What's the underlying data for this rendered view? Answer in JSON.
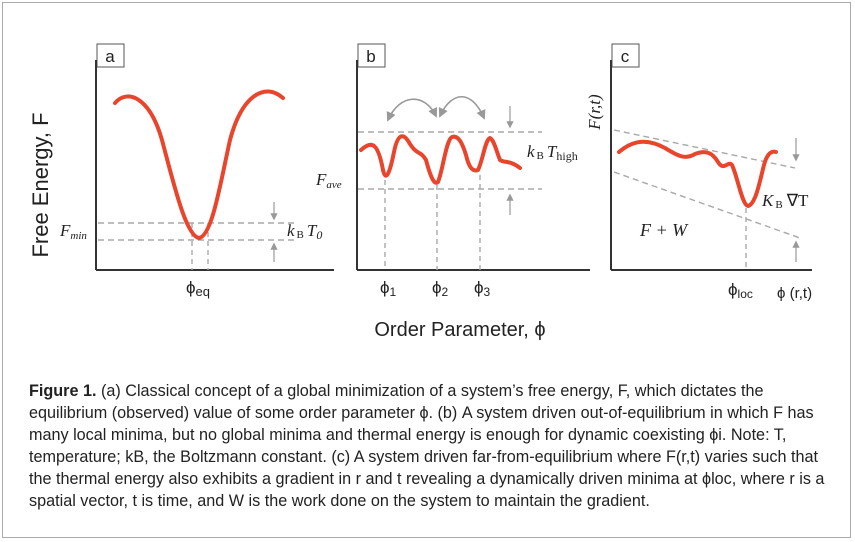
{
  "y_axis_label": "Free Energy, F",
  "x_axis_label": "Order Parameter, ϕ",
  "panels": {
    "a": {
      "label": "a",
      "fmin_main": "F",
      "fmin_sub": "min",
      "phi_eq_main": "ϕ",
      "phi_eq_sub": "eq",
      "kb_k": "k",
      "kb_b": "B",
      "kb_t": "T",
      "kb_sub": "0"
    },
    "b": {
      "label": "b",
      "fave_main": "F",
      "fave_sub": "ave",
      "phi1_main": "ϕ",
      "phi1_sub": "1",
      "phi2_main": "ϕ",
      "phi2_sub": "2",
      "phi3_main": "ϕ",
      "phi3_sub": "3",
      "kb_k": "k",
      "kb_b": "B",
      "kb_t": "T",
      "kb_sub": "high"
    },
    "c": {
      "label": "c",
      "ylabel": "F(r,t)",
      "fw": "F + W",
      "kb_k": "K",
      "kb_b": "B",
      "kb_grad": "∇T",
      "phi_loc_main": "ϕ",
      "phi_loc_sub": "loc",
      "xlabel": "ϕ (r,t)"
    }
  },
  "caption": {
    "lead": "Figure 1.",
    "text": "(a) Classical concept of a global minimization of a system’s free energy, F, which dictates the equilibrium (observed) value of some order parameter ϕ. (b) A system driven out-of-equilibrium in which F has many local minima, but no global minima and thermal energy is enough for dynamic coexisting ϕi. Note: T, temperature; kB, the Boltzmann constant. (c) A system driven far-from-equilibrium where F(r,t) varies such that the thermal energy also exhibits a gradient in r and t revealing a dynamically driven minima at ϕloc, where r is a spatial vector, t is time, and W is the work done on the system to maintain the gradient."
  },
  "colors": {
    "curve": "#e8452c",
    "axis": "#333333",
    "dash": "#a8a8a8",
    "arrow": "#999999",
    "frame": "#aaaaaa"
  }
}
